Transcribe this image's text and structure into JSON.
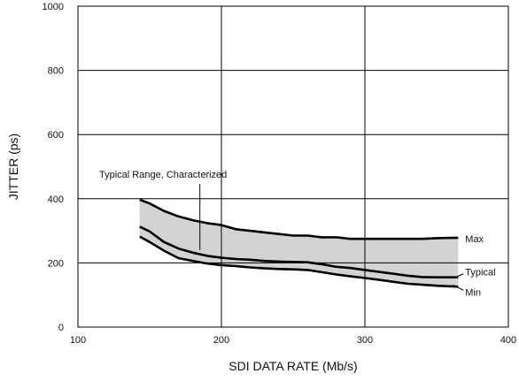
{
  "chart_data": {
    "type": "line",
    "xlabel": "SDI DATA RATE (Mb/s)",
    "ylabel": "JITTER (ps)",
    "xlim": [
      100,
      400
    ],
    "ylim": [
      0,
      1000
    ],
    "x_ticks": [
      100,
      200,
      300,
      400
    ],
    "y_ticks": [
      0,
      200,
      400,
      600,
      800,
      1000
    ],
    "grid": true,
    "band_color": "#d3d3d3",
    "line_color": "#000000",
    "series": [
      {
        "name": "Max",
        "x": [
          143,
          150,
          160,
          170,
          180,
          190,
          200,
          210,
          220,
          230,
          240,
          250,
          260,
          270,
          280,
          290,
          300,
          310,
          320,
          330,
          340,
          350,
          360,
          365
        ],
        "y": [
          397,
          385,
          362,
          345,
          333,
          324,
          318,
          305,
          300,
          295,
          290,
          285,
          285,
          280,
          280,
          275,
          275,
          275,
          275,
          275,
          275,
          277,
          278,
          278
        ]
      },
      {
        "name": "Typical",
        "x": [
          143,
          150,
          160,
          170,
          180,
          190,
          200,
          210,
          220,
          230,
          240,
          250,
          260,
          270,
          280,
          290,
          300,
          310,
          320,
          330,
          340,
          350,
          360,
          365
        ],
        "y": [
          313,
          298,
          265,
          245,
          232,
          222,
          216,
          212,
          210,
          206,
          204,
          203,
          202,
          196,
          188,
          184,
          178,
          172,
          166,
          160,
          156,
          155,
          155,
          155
        ]
      },
      {
        "name": "Min",
        "x": [
          143,
          150,
          160,
          170,
          180,
          190,
          200,
          210,
          220,
          230,
          240,
          250,
          260,
          270,
          280,
          290,
          300,
          310,
          320,
          330,
          340,
          350,
          360,
          365
        ],
        "y": [
          282,
          265,
          238,
          215,
          206,
          198,
          193,
          190,
          186,
          183,
          181,
          180,
          178,
          171,
          164,
          158,
          153,
          147,
          141,
          135,
          132,
          129,
          127,
          126
        ]
      }
    ],
    "annotations": [
      {
        "text": "Typical Range, Characterized",
        "x": 185,
        "y": 240
      }
    ]
  }
}
